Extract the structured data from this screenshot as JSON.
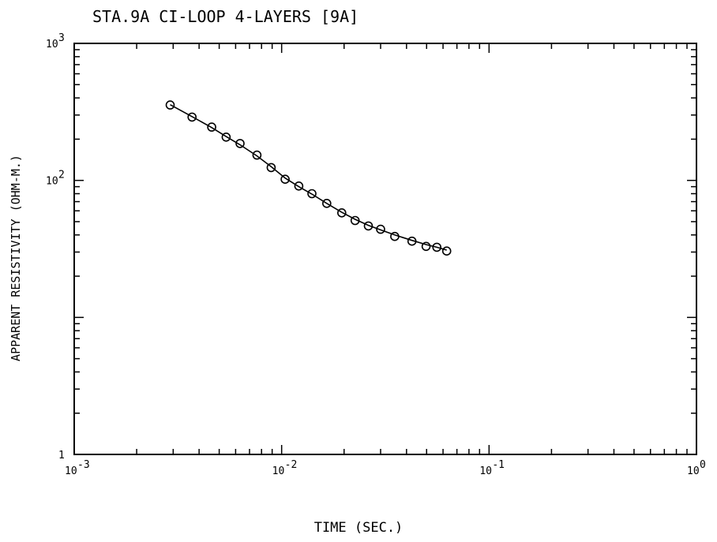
{
  "chart_data": {
    "type": "scatter",
    "title": "STA.9A CI-LOOP 4-LAYERS [9A]",
    "xlabel": "TIME (SEC.)",
    "ylabel": "APPARENT RESISTIVITY (OHM-M.)",
    "x_scale": "log",
    "y_scale": "log",
    "xlim": [
      0.001,
      1
    ],
    "ylim": [
      1,
      1000
    ],
    "grid": false,
    "x_ticks": [
      {
        "base": "10",
        "exp": "-3"
      },
      {
        "base": "10",
        "exp": "-2"
      },
      {
        "base": "10",
        "exp": "-1"
      },
      {
        "base": "10",
        "exp": "0"
      }
    ],
    "y_ticks": [
      {
        "base": "10",
        "exp": "3"
      },
      {
        "base": "10",
        "exp": "2"
      },
      {
        "base": "1",
        "exp": ""
      }
    ],
    "series": [
      {
        "points": [
          [
            0.0029,
            355
          ],
          [
            0.0037,
            290
          ],
          [
            0.0046,
            245
          ],
          [
            0.0054,
            207
          ],
          [
            0.0063,
            186
          ],
          [
            0.0076,
            153
          ],
          [
            0.0089,
            124
          ],
          [
            0.0104,
            102
          ],
          [
            0.0121,
            91
          ],
          [
            0.014,
            80
          ],
          [
            0.0165,
            68
          ],
          [
            0.0195,
            58
          ],
          [
            0.0226,
            51
          ],
          [
            0.0262,
            46.5
          ],
          [
            0.03,
            44
          ],
          [
            0.0351,
            39
          ],
          [
            0.0425,
            36
          ],
          [
            0.0497,
            33
          ],
          [
            0.056,
            32.5
          ],
          [
            0.0625,
            30.5
          ]
        ],
        "fit_line": [
          [
            0.0029,
            357
          ],
          [
            0.0037,
            292
          ],
          [
            0.0046,
            243
          ],
          [
            0.0054,
            209
          ],
          [
            0.0063,
            182
          ],
          [
            0.0076,
            151
          ],
          [
            0.0089,
            126
          ],
          [
            0.0104,
            104
          ],
          [
            0.0121,
            90
          ],
          [
            0.014,
            79.5
          ],
          [
            0.0165,
            68
          ],
          [
            0.0195,
            58.5
          ],
          [
            0.0226,
            52
          ],
          [
            0.0262,
            47
          ],
          [
            0.03,
            43.5
          ],
          [
            0.0351,
            40
          ],
          [
            0.0425,
            36.5
          ],
          [
            0.0497,
            34
          ],
          [
            0.056,
            32.5
          ],
          [
            0.0625,
            31
          ]
        ]
      }
    ]
  }
}
